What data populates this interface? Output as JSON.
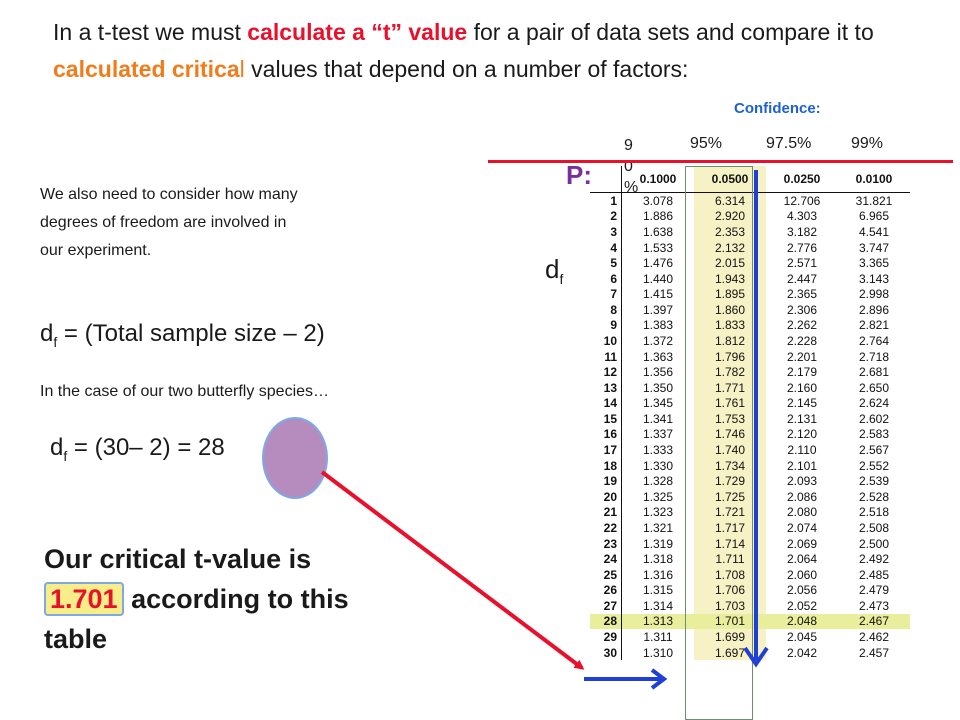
{
  "intro": {
    "part1": "In a t-test we must ",
    "part2": "calculate a “t” value",
    "part3": " for a pair of data sets and compare it to ",
    "part4": "calculated critica",
    "part5": "l",
    "part6": " values that depend on a number of factors:"
  },
  "confidence_label": "Confidence:",
  "confidence_levels": [
    "9 0 %",
    "95%",
    "97.5%",
    "99%"
  ],
  "p_label": "P:",
  "df_label": "d",
  "df_sub": "f",
  "note": "We also need to consider how many degrees of freedom are involved in our experiment.",
  "formula1": {
    "d": "d",
    "sub": "f",
    "rest": " = (Total sample size – 2)"
  },
  "case_note": "In the case of our two butterfly species…",
  "formula2": {
    "d": "d",
    "sub": "f",
    "rest": " = (30– 2) = ",
    "result": "28"
  },
  "conclusion": {
    "before": "Our critical t-value is ",
    "value": "1.701",
    "after": " according to this table"
  },
  "table": {
    "headers": [
      "",
      "0.1000",
      "0.0500",
      "0.0250",
      "0.0100"
    ],
    "rows": [
      [
        "1",
        "3.078",
        "6.314",
        "12.706",
        "31.821"
      ],
      [
        "2",
        "1.886",
        "2.920",
        "4.303",
        "6.965"
      ],
      [
        "3",
        "1.638",
        "2.353",
        "3.182",
        "4.541"
      ],
      [
        "4",
        "1.533",
        "2.132",
        "2.776",
        "3.747"
      ],
      [
        "5",
        "1.476",
        "2.015",
        "2.571",
        "3.365"
      ],
      [
        "6",
        "1.440",
        "1.943",
        "2.447",
        "3.143"
      ],
      [
        "7",
        "1.415",
        "1.895",
        "2.365",
        "2.998"
      ],
      [
        "8",
        "1.397",
        "1.860",
        "2.306",
        "2.896"
      ],
      [
        "9",
        "1.383",
        "1.833",
        "2.262",
        "2.821"
      ],
      [
        "10",
        "1.372",
        "1.812",
        "2.228",
        "2.764"
      ],
      [
        "11",
        "1.363",
        "1.796",
        "2.201",
        "2.718"
      ],
      [
        "12",
        "1.356",
        "1.782",
        "2.179",
        "2.681"
      ],
      [
        "13",
        "1.350",
        "1.771",
        "2.160",
        "2.650"
      ],
      [
        "14",
        "1.345",
        "1.761",
        "2.145",
        "2.624"
      ],
      [
        "15",
        "1.341",
        "1.753",
        "2.131",
        "2.602"
      ],
      [
        "16",
        "1.337",
        "1.746",
        "2.120",
        "2.583"
      ],
      [
        "17",
        "1.333",
        "1.740",
        "2.110",
        "2.567"
      ],
      [
        "18",
        "1.330",
        "1.734",
        "2.101",
        "2.552"
      ],
      [
        "19",
        "1.328",
        "1.729",
        "2.093",
        "2.539"
      ],
      [
        "20",
        "1.325",
        "1.725",
        "2.086",
        "2.528"
      ],
      [
        "21",
        "1.323",
        "1.721",
        "2.080",
        "2.518"
      ],
      [
        "22",
        "1.321",
        "1.717",
        "2.074",
        "2.508"
      ],
      [
        "23",
        "1.319",
        "1.714",
        "2.069",
        "2.500"
      ],
      [
        "24",
        "1.318",
        "1.711",
        "2.064",
        "2.492"
      ],
      [
        "25",
        "1.316",
        "1.708",
        "2.060",
        "2.485"
      ],
      [
        "26",
        "1.315",
        "1.706",
        "2.056",
        "2.479"
      ],
      [
        "27",
        "1.314",
        "1.703",
        "2.052",
        "2.473"
      ],
      [
        "28",
        "1.313",
        "1.701",
        "2.048",
        "2.467"
      ],
      [
        "29",
        "1.311",
        "1.699",
        "2.045",
        "2.462"
      ],
      [
        "30",
        "1.310",
        "1.697",
        "2.042",
        "2.457"
      ]
    ],
    "highlight_df": "28"
  },
  "colors": {
    "red": "#e8102b",
    "orange": "#f07c1c",
    "blue": "#1f5fd6",
    "purple": "#7a2f9b"
  }
}
